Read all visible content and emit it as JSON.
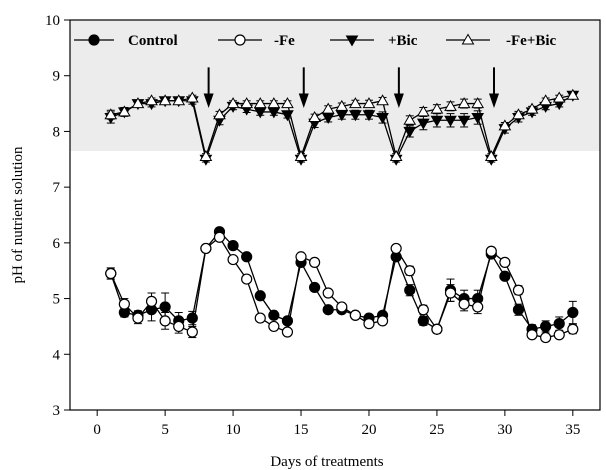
{
  "chart_data": {
    "type": "line",
    "xlabel": "Days of treatments",
    "ylabel": "pH of nutrient solution",
    "xlim": [
      -2,
      37
    ],
    "ylim": [
      3,
      10
    ],
    "xticks": [
      0,
      5,
      10,
      15,
      20,
      25,
      30,
      35
    ],
    "yticks": [
      3,
      4,
      5,
      6,
      7,
      8,
      9,
      10
    ],
    "grid": false,
    "legend_position": "top",
    "shaded_band": {
      "y_from": 7.65,
      "y_to": 10,
      "color": "#ececec"
    },
    "arrows_at_days": [
      8.2,
      15.2,
      22.2,
      29.2
    ],
    "series": [
      {
        "name": "Control",
        "marker": "filled-circle",
        "x": [
          1,
          2,
          3,
          4,
          5,
          6,
          7,
          8,
          9,
          10,
          11,
          12,
          13,
          14,
          15,
          16,
          17,
          18,
          19,
          20,
          21,
          22,
          23,
          24,
          25,
          26,
          27,
          28,
          29,
          30,
          31,
          32,
          33,
          34,
          35
        ],
        "y": [
          5.45,
          4.75,
          4.7,
          4.8,
          4.85,
          4.6,
          4.65,
          5.9,
          6.2,
          5.95,
          5.75,
          5.05,
          4.7,
          4.6,
          5.65,
          5.2,
          4.8,
          4.8,
          4.7,
          4.65,
          4.7,
          5.75,
          5.15,
          4.6,
          4.45,
          5.15,
          5.0,
          5.0,
          5.8,
          5.4,
          4.8,
          4.45,
          4.5,
          4.55,
          4.75
        ],
        "err": [
          0.1,
          0.08,
          0.08,
          0.2,
          0.25,
          0.15,
          0.12,
          0.05,
          0.06,
          0.05,
          0.05,
          0.06,
          0.05,
          0.06,
          0.05,
          0.06,
          0.05,
          0.05,
          0.05,
          0.06,
          0.05,
          0.06,
          0.1,
          0.08,
          0.07,
          0.2,
          0.15,
          0.15,
          0.06,
          0.06,
          0.1,
          0.08,
          0.1,
          0.12,
          0.2
        ]
      },
      {
        "name": "-Fe",
        "marker": "open-circle",
        "x": [
          1,
          2,
          3,
          4,
          5,
          6,
          7,
          8,
          9,
          10,
          11,
          12,
          13,
          14,
          15,
          16,
          17,
          18,
          19,
          20,
          21,
          22,
          23,
          24,
          25,
          26,
          27,
          28,
          29,
          30,
          31,
          32,
          33,
          34,
          35
        ],
        "y": [
          5.45,
          4.9,
          4.65,
          4.95,
          4.6,
          4.5,
          4.4,
          5.9,
          6.1,
          5.7,
          5.35,
          4.65,
          4.5,
          4.4,
          5.75,
          5.65,
          5.1,
          4.85,
          4.7,
          4.55,
          4.6,
          5.9,
          5.5,
          4.8,
          4.45,
          5.1,
          4.9,
          4.85,
          5.85,
          5.65,
          5.15,
          4.35,
          4.3,
          4.35,
          4.45
        ],
        "err": [
          0.1,
          0.1,
          0.1,
          0.15,
          0.15,
          0.12,
          0.1,
          0.05,
          0.06,
          0.05,
          0.06,
          0.05,
          0.05,
          0.05,
          0.05,
          0.06,
          0.05,
          0.05,
          0.05,
          0.06,
          0.05,
          0.06,
          0.08,
          0.08,
          0.07,
          0.15,
          0.12,
          0.12,
          0.06,
          0.06,
          0.08,
          0.06,
          0.06,
          0.06,
          0.08
        ]
      },
      {
        "name": "+Bic",
        "marker": "filled-triangle-down",
        "x": [
          1,
          2,
          3,
          4,
          5,
          6,
          7,
          8,
          9,
          10,
          11,
          12,
          13,
          14,
          15,
          16,
          17,
          18,
          19,
          20,
          21,
          22,
          23,
          24,
          25,
          26,
          27,
          28,
          29,
          30,
          31,
          32,
          33,
          34,
          35
        ],
        "y": [
          8.25,
          8.35,
          8.5,
          8.5,
          8.55,
          8.55,
          8.55,
          7.5,
          8.2,
          8.45,
          8.4,
          8.35,
          8.35,
          8.3,
          7.5,
          8.15,
          8.25,
          8.3,
          8.3,
          8.3,
          8.25,
          7.5,
          8.0,
          8.15,
          8.2,
          8.2,
          8.2,
          8.25,
          7.5,
          8.05,
          8.25,
          8.35,
          8.45,
          8.5,
          8.65
        ],
        "err": [
          0.1,
          0.08,
          0.06,
          0.06,
          0.06,
          0.06,
          0.06,
          0.05,
          0.08,
          0.06,
          0.06,
          0.06,
          0.06,
          0.06,
          0.05,
          0.08,
          0.08,
          0.08,
          0.08,
          0.08,
          0.1,
          0.05,
          0.1,
          0.12,
          0.12,
          0.12,
          0.12,
          0.12,
          0.05,
          0.08,
          0.08,
          0.06,
          0.06,
          0.06,
          0.06
        ]
      },
      {
        "name": "-Fe+Bic",
        "marker": "open-triangle-up",
        "x": [
          1,
          2,
          3,
          4,
          5,
          6,
          7,
          8,
          9,
          10,
          11,
          12,
          13,
          14,
          15,
          16,
          17,
          18,
          19,
          20,
          21,
          22,
          23,
          24,
          25,
          26,
          27,
          28,
          29,
          30,
          31,
          32,
          33,
          34,
          35
        ],
        "y": [
          8.3,
          8.35,
          8.5,
          8.55,
          8.55,
          8.55,
          8.6,
          7.55,
          8.3,
          8.5,
          8.5,
          8.5,
          8.5,
          8.5,
          7.55,
          8.25,
          8.4,
          8.45,
          8.5,
          8.5,
          8.55,
          7.55,
          8.2,
          8.35,
          8.4,
          8.45,
          8.5,
          8.5,
          7.55,
          8.1,
          8.3,
          8.4,
          8.55,
          8.6,
          8.65
        ],
        "err": [
          0.08,
          0.06,
          0.05,
          0.05,
          0.05,
          0.05,
          0.05,
          0.05,
          0.06,
          0.05,
          0.05,
          0.05,
          0.05,
          0.05,
          0.05,
          0.06,
          0.06,
          0.06,
          0.06,
          0.06,
          0.06,
          0.05,
          0.08,
          0.08,
          0.08,
          0.08,
          0.08,
          0.08,
          0.05,
          0.06,
          0.06,
          0.05,
          0.05,
          0.05,
          0.05
        ]
      }
    ]
  }
}
